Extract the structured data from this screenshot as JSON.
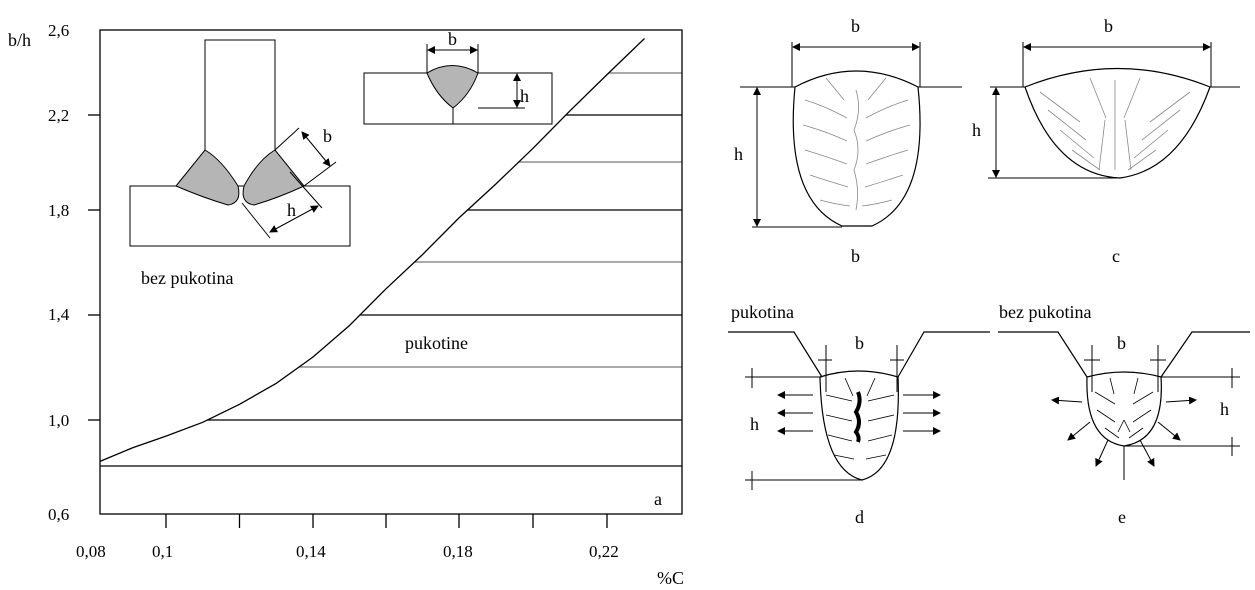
{
  "chart_data": {
    "type": "line",
    "title": "",
    "xlabel": "%C",
    "ylabel": "b/h",
    "x_ticks": [
      "0,08",
      "0,1",
      "0,14",
      "0,18",
      "0,22"
    ],
    "y_ticks": [
      "0,6",
      "1,0",
      "1,4",
      "1,8",
      "2,2",
      "2,6"
    ],
    "xlim": [
      0.08,
      0.24
    ],
    "ylim": [
      0.6,
      2.6
    ],
    "grid": false,
    "series": [
      {
        "x": [
          0.08,
          0.09,
          0.1,
          0.11,
          0.12,
          0.13,
          0.14,
          0.15,
          0.16,
          0.17,
          0.18,
          0.19,
          0.2,
          0.21,
          0.22,
          0.23
        ],
        "y": [
          0.82,
          0.88,
          0.93,
          0.99,
          1.06,
          1.14,
          1.24,
          1.36,
          1.5,
          1.63,
          1.77,
          1.91,
          2.06,
          2.22,
          2.39,
          2.56
        ]
      }
    ],
    "regions": [
      {
        "label": "bez pukotina"
      },
      {
        "label": "pukotine"
      }
    ],
    "panel_label": "a"
  },
  "inset_labels": {
    "b": "b",
    "h": "h"
  },
  "panels": [
    {
      "id": "b",
      "caption": "b",
      "width_label": "b",
      "height_label": "h"
    },
    {
      "id": "c",
      "caption": "c",
      "width_label": "b",
      "height_label": "h"
    },
    {
      "id": "d",
      "caption": "d",
      "title": "pukotina",
      "width_label": "b",
      "height_label": "h"
    },
    {
      "id": "e",
      "caption": "e",
      "title": "bez pukotina",
      "width_label": "b",
      "height_label": "h"
    }
  ]
}
